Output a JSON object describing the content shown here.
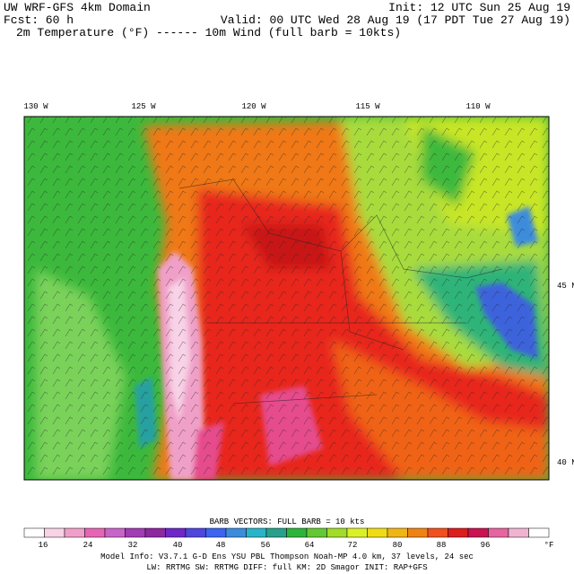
{
  "header": {
    "title": "UW WRF-GFS 4km Domain",
    "init": "Init: 12 UTC Sun 25 Aug 19",
    "forecast": "Fcst:  60 h",
    "valid": "Valid: 00 UTC Wed 28 Aug 19 (17 PDT Tue 27 Aug 19)",
    "fields": "2m Temperature (°F) ------ 10m Wind (full barb = 10kts)"
  },
  "map": {
    "longitude_labels": [
      "130 W",
      "125 W",
      "120 W",
      "115 W",
      "110 W"
    ],
    "latitude_labels": [
      "45 N",
      "40 N"
    ]
  },
  "colorbar": {
    "title": "BARB VECTORS:  FULL BARB = 10 kts",
    "labels": [
      "16",
      "24",
      "32",
      "40",
      "48",
      "56",
      "64",
      "72",
      "80",
      "88",
      "96",
      "°F"
    ]
  },
  "footer": {
    "line1": "Model Info: V3.7.1   G-D Ens YSU PBL  Thompson    Noah-MP  4.0 km,  37 levels,  24 sec",
    "line2": "LW: RRTMG SW: RRTMG   DIFF: full   KM: 2D Smagor INIT: RAP+GFS"
  }
}
